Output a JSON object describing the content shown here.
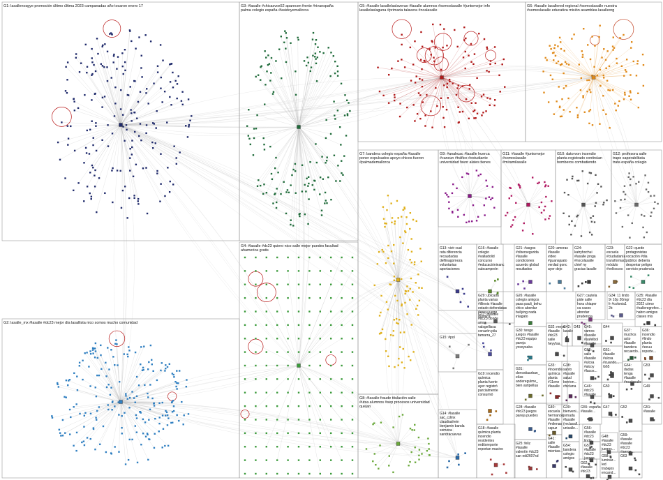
{
  "title": "",
  "groups": [
    {
      "id": "G1",
      "label": "G1: lasallenosgye promoción último última 2023 campanadas año tocaron enero 17",
      "color": "#1f2a6b"
    },
    {
      "id": "G2",
      "label": "G2: lasalle_mx #lasalle #dc23 mejor día lasallista nico somos mucho comunidad",
      "color": "#2f7fc1"
    },
    {
      "id": "G3",
      "label": "G3: #lasalle #chicasvox52 aparecen frente #rivaespaña palma colegio españa #lasidoyemallorca",
      "color": "#1f6b3a"
    },
    {
      "id": "G4",
      "label": "G4: #lasalle #dc23 quiero nico salle mejor puedes facultad ahamerica gratis",
      "color": "#3a9a3a"
    },
    {
      "id": "G5",
      "label": "G5: #lasalle lasallelaslaverao #lasalle alumnos #somoslasalle #juntomejor info lasallelaslaguna #primaria talavera #ncalasalle",
      "color": "#b01818"
    },
    {
      "id": "G6",
      "label": "G6: #lasalle lasallered regional #somoslasalle nuestra #somoslasalle educativa misión asamblea lasalleorg",
      "color": "#e08a1a"
    },
    {
      "id": "G7",
      "label": "G7: bandera colegio españa #lasalle poner expulsados apoyo chicos fueron #palmademallorca",
      "color": "#e0b01a"
    },
    {
      "id": "G8",
      "label": "G8: #lasalle fraude titulación salle #utsa alumnos #sep procesos universidad quejan",
      "color": "#6aa83a"
    },
    {
      "id": "G9",
      "label": "G9: #anahuac #lasalle huerca #cancun #tráfico #estudiante universidad favor alates tienes",
      "color": "#8a1a8a"
    },
    {
      "id": "G10",
      "label": "G10: datorvon incendio planta registrado continúan bomberos combatiendo equipos químico #lasalle nuestro",
      "color": "#555555"
    },
    {
      "id": "G11",
      "label": "G11: #lasalle #juntomejor #somoslasalle #miramilasalle #lasallemundonuevo alumnos hoy nuestro gracias",
      "color": "#b01860"
    },
    {
      "id": "G12",
      "label": "G12: profesora salle trapo saperabilitata trata españa colegio españa catalán clases",
      "color": "#6a6a6a"
    },
    {
      "id": "G13",
      "label": "G13: vivir cual rata diferencia recaudadas delfinagomeza voluntarias aportaciones prestado donchidoimo",
      "color": "#3a3a8a"
    },
    {
      "id": "G14",
      "label": "G14: #lasalle sac_cdmx claudiashein benjamin banda xemena sandracuevas pasado estudiantes",
      "color": "#2a6aa8"
    },
    {
      "id": "G15",
      "label": "G15: #pol",
      "color": "#7a7a7a"
    },
    {
      "id": "G16",
      "label": "G16: #lasalle colegio #valladolid concurso #educacióninanc subcampeón juandemariguera ciberconvivencia #ciberatado economiatrevelar",
      "color": "#5a8a2a"
    },
    {
      "id": "G17",
      "label": "G17: #lasalle #dc23 donde amor valsgellissa corazón pila tamarra_27 nico quiero",
      "color": "#4a4a9a"
    },
    {
      "id": "G18",
      "label": "G18: #lasalle química planta incendio residentes reditoreporte reportan masivo refugiarse piden",
      "color": "#a83a3a"
    },
    {
      "id": "G19",
      "label": "G19: incendio química planta fuerte ayer registró parcialmente consumió mexicopost #lasalle",
      "color": "#a86a1a"
    },
    {
      "id": "G20",
      "label": "G20: amoras #lasalle video #guanajuato verdad gonc ayer dejo toco mucho",
      "color": "#4a7a9a"
    },
    {
      "id": "G21",
      "label": "G21: #asgos #cibersegurida #lasalle condiciones acuerdo global resultados dentro permisos aceptar",
      "color": "#6a3a9a"
    },
    {
      "id": "G22",
      "label": "G22: quede protagonistas vocación #dia público debería desperiar peligro servicio prudencia",
      "color": "#3a8a6a"
    },
    {
      "id": "G23",
      "label": "G23: escuela #ciudadanía transformact módulo #velloscos desarrollo opccachimbo #controlsocial #rendiciónde",
      "color": "#8a6a3a"
    },
    {
      "id": "G24",
      "label": "G24: katryhochui #lasalle jonga #nocolasalle chief ny gracias lasalle #reject",
      "color": "#3a3a3a"
    },
    {
      "id": "G25",
      "label": "G25: feliz #lasalle valentín #dc23 xan edi2607xd",
      "color": "#9a3a3a"
    },
    {
      "id": "G26",
      "label": "G26: #lasalle colegio amigos pasa pauli_behu chico abordar bullying nada inlagato",
      "color": "#3a7a3a"
    },
    {
      "id": "G27",
      "label": "G27: cautela pide salle hora chiaper ca casos abordar prudencia marraria",
      "color": "#7a3a7a"
    },
    {
      "id": "G28",
      "label": "G28: #lasalle #dc23 juegos pareja puedes",
      "color": "#3a5a8a"
    },
    {
      "id": "G29",
      "label": "G29: ubicada planta varias #illinois #lasalle estado defendatas #eseu juego química",
      "color": "#5a5a5a"
    },
    {
      "id": "G30",
      "label": "G30: tengo juegos #lasalle #dc23 equipo pareja yosoysaba",
      "color": "#2a7a8a"
    },
    {
      "id": "G31",
      "label": "G31: donostiaurban_ elías anderegulme_ bien astipellua",
      "color": "#6a6a2a"
    },
    {
      "id": "G32",
      "label": "G32: mejor #lasalle #dc23 salle heyyfaa_",
      "color": "#4a4a4a"
    },
    {
      "id": "G33",
      "label": "G33: #incendio química planta #11ene #lasalle canuz registrado continúa_",
      "color": "#8a2a2a"
    },
    {
      "id": "G34",
      "label": "G34: 11 lindo 9r 10p 20mgr fr #colonia1 2b",
      "color": "#5a5a8a"
    },
    {
      "id": "G35",
      "label": "G35: #lasalle #dc23 día 2022 cómo #salleregrefeo... habro amigos clases mis",
      "color": "#3a3a3a"
    },
    {
      "id": "G36",
      "label": "G36: incendio #lindo planta #eeuu reporte...",
      "color": "#7a4a2a"
    },
    {
      "id": "G37",
      "label": "G37: muchos acto #lasalle bandera recuerdo...",
      "color": "#2a5a3a"
    },
    {
      "id": "G38",
      "label": "G38: santo #lasalle salud borrion... chiclana",
      "color": "#5a2a5a"
    },
    {
      "id": "G39",
      "label": "G39: bienveni... jornada #lasalle (reclasall... unisalle...",
      "color": "#2a4a6a"
    },
    {
      "id": "G40",
      "label": "G40: escuela hermanos #lasalle #milenas capuz",
      "color": "#6a5a2a"
    },
    {
      "id": "G41",
      "label": "G41: salle #lasalle mientas...",
      "color": "#3a3a6a"
    },
    {
      "id": "G42",
      "label": "G42: lasalle",
      "color": "#4a4a4a"
    },
    {
      "id": "G43",
      "label": "G43",
      "color": "#4a4a4a"
    },
    {
      "id": "G44",
      "label": "G44",
      "color": "#4a4a4a"
    },
    {
      "id": "G45",
      "label": "G45: vamos #lasalle #safelbol #lasalle",
      "color": "#4a4a4a"
    },
    {
      "id": "G46",
      "label": "G46: #dc23 #lasalle",
      "color": "#4a4a4a"
    },
    {
      "id": "G47",
      "label": "G47",
      "color": "#4a4a4a"
    },
    {
      "id": "G48",
      "label": "G48: #lasalle #dc23 juegos...",
      "color": "#4a4a4a"
    },
    {
      "id": "G49",
      "label": "G49",
      "color": "#4a4a4a"
    },
    {
      "id": "G50",
      "label": "G50",
      "color": "#4a4a4a"
    },
    {
      "id": "G51",
      "label": "G51: #lasalle",
      "color": "#4a4a4a"
    },
    {
      "id": "G52",
      "label": "G52",
      "color": "#4a4a4a"
    },
    {
      "id": "G53",
      "label": "G53",
      "color": "#4a4a4a"
    },
    {
      "id": "G54",
      "label": "G54: bandera colegio amigos",
      "color": "#4a4a4a"
    },
    {
      "id": "G55",
      "label": "G55: españa #lasalle...",
      "color": "#4a4a4a"
    },
    {
      "id": "G56",
      "label": "G56: #lasalle #dc23 lindo",
      "color": "#4a4a4a"
    },
    {
      "id": "G57",
      "label": "G57: #lasalle #dc23 juegos",
      "color": "#4a4a4a"
    },
    {
      "id": "G58",
      "label": "G58: luminar... led trabajos encand...",
      "color": "#4a4a4a"
    },
    {
      "id": "G59",
      "label": "G59: #lasalle #lasalle #dc23 #aeroe...",
      "color": "#4a4a4a"
    },
    {
      "id": "G60",
      "label": "G60: salle #lasalle #ulcsa #alcoy #lacos...",
      "color": "#4a4a4a"
    },
    {
      "id": "G61",
      "label": "G61: #lasalle #ulcsa #cuando...",
      "color": "#4a4a4a"
    },
    {
      "id": "G62",
      "label": "G62: #lasalle #dc23",
      "color": "#4a4a4a"
    },
    {
      "id": "G63",
      "label": "G63",
      "color": "#4a4a4a"
    },
    {
      "id": "G64",
      "label": "G64: dadas tenga #lasalle #ncalasalle",
      "color": "#4a4a4a"
    },
    {
      "id": "G65",
      "label": "G65",
      "color": "#4a4a4a"
    }
  ]
}
